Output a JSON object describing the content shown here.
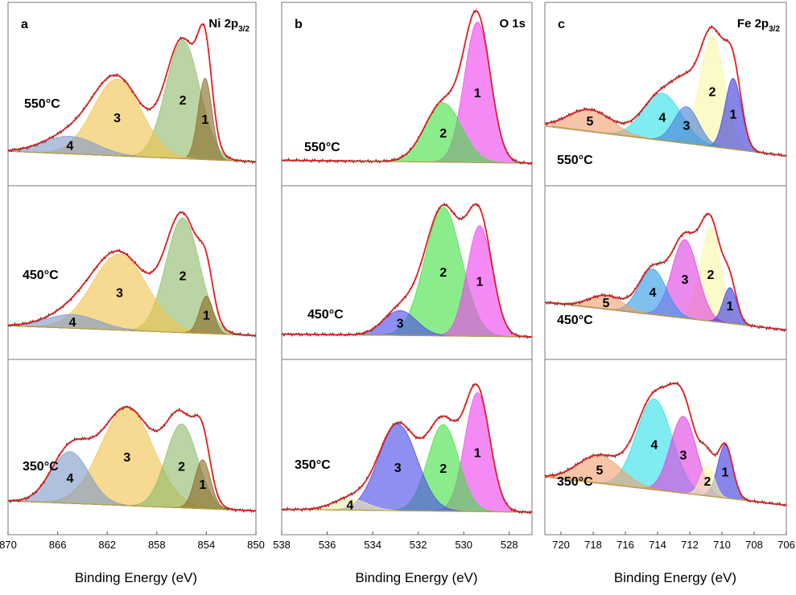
{
  "chart_data": [
    {
      "type": "area",
      "panel": "a",
      "element_label": "Ni 2p",
      "element_sub": "3/2",
      "xlabel": "Binding Energy (eV)",
      "xlim": [
        870,
        850
      ],
      "x_ticks": [
        870,
        866,
        862,
        858,
        854,
        850
      ],
      "subplots": [
        {
          "temperature": "550°C",
          "series": [
            {
              "label": "1",
              "center": 854.1,
              "fwhm": 1.3,
              "height": 0.55,
              "color": "#8a6a28"
            },
            {
              "label": "2",
              "center": 855.9,
              "fwhm": 3.2,
              "height": 0.8,
              "color": "#8fbc6a"
            },
            {
              "label": "3",
              "center": 861.2,
              "fwhm": 4.6,
              "height": 0.52,
              "color": "#f2c44d"
            },
            {
              "label": "4",
              "center": 865.0,
              "fwhm": 5.0,
              "height": 0.12,
              "color": "#7f9bc9"
            }
          ]
        },
        {
          "temperature": "450°C",
          "series": [
            {
              "label": "1",
              "center": 854.0,
              "fwhm": 1.3,
              "height": 0.27,
              "color": "#8a6a28"
            },
            {
              "label": "2",
              "center": 855.9,
              "fwhm": 3.2,
              "height": 0.83,
              "color": "#8fbc6a"
            },
            {
              "label": "3",
              "center": 861.0,
              "fwhm": 5.2,
              "height": 0.55,
              "color": "#f2c44d"
            },
            {
              "label": "4",
              "center": 864.8,
              "fwhm": 5.0,
              "height": 0.1,
              "color": "#7f9bc9"
            }
          ]
        },
        {
          "temperature": "350°C",
          "series": [
            {
              "label": "1",
              "center": 854.3,
              "fwhm": 1.5,
              "height": 0.35,
              "color": "#8a6a28"
            },
            {
              "label": "2",
              "center": 856.0,
              "fwhm": 3.0,
              "height": 0.6,
              "color": "#8fbc6a"
            },
            {
              "label": "3",
              "center": 860.4,
              "fwhm": 5.0,
              "height": 0.7,
              "color": "#f2c44d"
            },
            {
              "label": "4",
              "center": 865.0,
              "fwhm": 3.6,
              "height": 0.37,
              "color": "#7f9bc9"
            }
          ]
        }
      ]
    },
    {
      "type": "area",
      "panel": "b",
      "element_label": "O 1s",
      "element_sub": "",
      "xlabel": "Binding Energy (eV)",
      "xlim": [
        538,
        527
      ],
      "x_ticks": [
        538,
        536,
        534,
        532,
        530,
        528
      ],
      "subplots": [
        {
          "temperature": "550°C",
          "series": [
            {
              "label": "1",
              "center": 529.4,
              "fwhm": 1.35,
              "height": 0.95,
              "color": "#ee44ee"
            },
            {
              "label": "2",
              "center": 530.9,
              "fwhm": 1.9,
              "height": 0.4,
              "color": "#44e044"
            }
          ]
        },
        {
          "temperature": "450°C",
          "series": [
            {
              "label": "1",
              "center": 529.3,
              "fwhm": 1.3,
              "height": 0.8,
              "color": "#ee44ee"
            },
            {
              "label": "2",
              "center": 530.9,
              "fwhm": 1.9,
              "height": 0.93,
              "color": "#44e044"
            },
            {
              "label": "3",
              "center": 532.8,
              "fwhm": 1.7,
              "height": 0.18,
              "color": "#4a4ae8"
            }
          ]
        },
        {
          "temperature": "350°C",
          "series": [
            {
              "label": "1",
              "center": 529.4,
              "fwhm": 1.3,
              "height": 0.85,
              "color": "#ee44ee"
            },
            {
              "label": "2",
              "center": 530.9,
              "fwhm": 1.6,
              "height": 0.62,
              "color": "#44e044"
            },
            {
              "label": "3",
              "center": 532.9,
              "fwhm": 2.0,
              "height": 0.62,
              "color": "#4a4ae8"
            },
            {
              "label": "4",
              "center": 535.0,
              "fwhm": 1.8,
              "height": 0.08,
              "color": "#f2eeaa"
            }
          ]
        }
      ]
    },
    {
      "type": "area",
      "panel": "c",
      "element_label": "Fe 2p",
      "element_sub": "3/2",
      "xlabel": "Binding Energy (eV)",
      "xlim": [
        721,
        706
      ],
      "x_ticks": [
        720,
        718,
        716,
        714,
        712,
        710,
        708,
        706
      ],
      "subplots": [
        {
          "temperature": "550°C",
          "series": [
            {
              "label": "1",
              "center": 709.3,
              "fwhm": 1.2,
              "height": 0.48,
              "color": "#3a3ae0"
            },
            {
              "label": "2",
              "center": 710.6,
              "fwhm": 1.8,
              "height": 0.75,
              "color": "#f8f8a8"
            },
            {
              "label": "3",
              "center": 712.2,
              "fwhm": 1.8,
              "height": 0.25,
              "color": "#4a7fd6"
            },
            {
              "label": "4",
              "center": 713.7,
              "fwhm": 2.8,
              "height": 0.32,
              "color": "#2ee0e8"
            },
            {
              "label": "5",
              "center": 718.2,
              "fwhm": 3.2,
              "height": 0.15,
              "color": "#f0a070"
            }
          ]
        },
        {
          "temperature": "450°C",
          "series": [
            {
              "label": "1",
              "center": 709.5,
              "fwhm": 1.0,
              "height": 0.26,
              "color": "#3a3ae0"
            },
            {
              "label": "2",
              "center": 710.7,
              "fwhm": 1.5,
              "height": 0.68,
              "color": "#f8f8a8"
            },
            {
              "label": "3",
              "center": 712.3,
              "fwhm": 1.9,
              "height": 0.57,
              "color": "#e040e0"
            },
            {
              "label": "4",
              "center": 714.3,
              "fwhm": 2.0,
              "height": 0.33,
              "color": "#2e9be8"
            },
            {
              "label": "5",
              "center": 717.2,
              "fwhm": 2.5,
              "height": 0.1,
              "color": "#f0a070"
            }
          ]
        },
        {
          "temperature": "350°C",
          "series": [
            {
              "label": "1",
              "center": 709.8,
              "fwhm": 1.1,
              "height": 0.38,
              "color": "#3a3ae0"
            },
            {
              "label": "2",
              "center": 710.9,
              "fwhm": 1.0,
              "height": 0.22,
              "color": "#f8f8a8"
            },
            {
              "label": "3",
              "center": 712.4,
              "fwhm": 1.9,
              "height": 0.55,
              "color": "#e040e0"
            },
            {
              "label": "4",
              "center": 714.2,
              "fwhm": 2.6,
              "height": 0.65,
              "color": "#2ee0e8"
            },
            {
              "label": "5",
              "center": 717.6,
              "fwhm": 3.2,
              "height": 0.2,
              "color": "#f0a070"
            }
          ]
        }
      ]
    }
  ]
}
